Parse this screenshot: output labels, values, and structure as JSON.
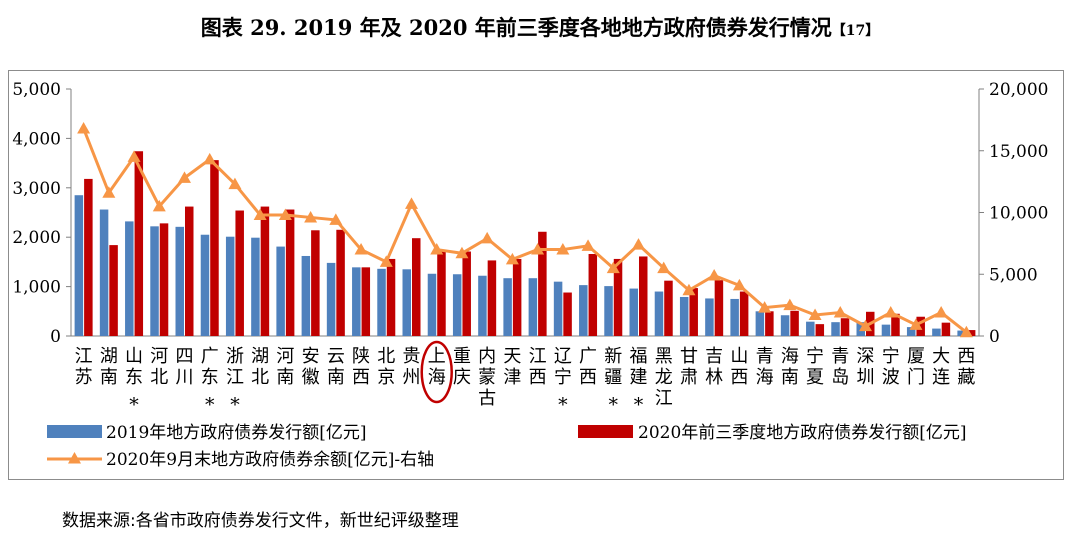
{
  "title": "图表 29. 2019 年及 2020 年前三季度各地地方政府债券发行情况",
  "title_ref": "【17】",
  "source": "数据来源:各省市政府债券发行文件，新世纪评级整理",
  "colors": {
    "bar2019": "#4f81bd",
    "bar2020": "#c00000",
    "line": "#f79646",
    "highlight": "#c00000"
  },
  "chart_data": {
    "type": "bar",
    "categories": [
      "江苏",
      "湖南",
      "山东*",
      "河北",
      "四川",
      "广东*",
      "浙江*",
      "湖北",
      "河南",
      "安徽",
      "云南",
      "陕西",
      "北京",
      "贵州",
      "上海",
      "重庆",
      "内蒙古",
      "天津",
      "江西",
      "辽宁*",
      "广西",
      "新疆*",
      "福建*",
      "黑龙江",
      "甘肃",
      "吉林",
      "山西",
      "青海",
      "海南",
      "宁夏",
      "青岛",
      "深圳",
      "宁波",
      "厦门",
      "大连",
      "西藏"
    ],
    "category_labels": [
      [
        "江",
        "苏"
      ],
      [
        "湖",
        "南"
      ],
      [
        "山",
        "东",
        "*"
      ],
      [
        "河",
        "北"
      ],
      [
        "四",
        "川"
      ],
      [
        "广",
        "东",
        "*"
      ],
      [
        "浙",
        "江",
        "*"
      ],
      [
        "湖",
        "北"
      ],
      [
        "河",
        "南"
      ],
      [
        "安",
        "徽"
      ],
      [
        "云",
        "南"
      ],
      [
        "陕",
        "西"
      ],
      [
        "北",
        "京"
      ],
      [
        "贵",
        "州"
      ],
      [
        "上",
        "海"
      ],
      [
        "重",
        "庆"
      ],
      [
        "内",
        "蒙",
        "古"
      ],
      [
        "天",
        "津"
      ],
      [
        "江",
        "西"
      ],
      [
        "辽",
        "宁",
        "*"
      ],
      [
        "广",
        "西"
      ],
      [
        "新",
        "疆",
        "*"
      ],
      [
        "福",
        "建",
        "*"
      ],
      [
        "黑",
        "龙",
        "江"
      ],
      [
        "甘",
        "肃"
      ],
      [
        "吉",
        "林"
      ],
      [
        "山",
        "西"
      ],
      [
        "青",
        "海"
      ],
      [
        "海",
        "南"
      ],
      [
        "宁",
        "夏"
      ],
      [
        "青",
        "岛"
      ],
      [
        "深",
        "圳"
      ],
      [
        "宁",
        "波"
      ],
      [
        "厦",
        "门"
      ],
      [
        "大",
        "连"
      ],
      [
        "西",
        "藏"
      ]
    ],
    "highlight_category": "上海",
    "series": [
      {
        "name": "2019年地方政府债券发行额[亿元]",
        "type": "bar",
        "axis": "left",
        "values": [
          2850,
          2560,
          2320,
          2220,
          2210,
          2050,
          2010,
          1990,
          1810,
          1620,
          1480,
          1390,
          1360,
          1350,
          1260,
          1250,
          1220,
          1170,
          1170,
          1100,
          1030,
          1010,
          960,
          900,
          790,
          760,
          750,
          500,
          420,
          290,
          280,
          280,
          230,
          180,
          150,
          110
        ]
      },
      {
        "name": "2020年前三季度地方政府债券发行额[亿元]",
        "type": "bar",
        "axis": "left",
        "values": [
          3180,
          1840,
          3740,
          2280,
          2620,
          3560,
          2540,
          2620,
          2560,
          2140,
          2150,
          1390,
          1560,
          1980,
          1710,
          1710,
          1530,
          1560,
          2110,
          880,
          1660,
          1560,
          1610,
          1120,
          970,
          1130,
          900,
          500,
          510,
          240,
          360,
          490,
          450,
          390,
          270,
          120
        ]
      },
      {
        "name": "2020年9月末地方政府债券余额[亿元]-右轴",
        "type": "line",
        "axis": "right",
        "values": [
          16800,
          11600,
          14500,
          10500,
          12800,
          14300,
          12300,
          9800,
          9800,
          9600,
          9400,
          7000,
          6000,
          10700,
          7000,
          6700,
          7900,
          6200,
          7000,
          7000,
          7300,
          5500,
          7400,
          5500,
          3700,
          4900,
          4100,
          2300,
          2500,
          1700,
          1900,
          800,
          1900,
          900,
          1900,
          300
        ]
      }
    ],
    "y_left": {
      "min": 0,
      "max": 5000,
      "ticks": [
        "0",
        "1,000",
        "2,000",
        "3,000",
        "4,000",
        "5,000"
      ]
    },
    "y_right": {
      "min": 0,
      "max": 20000,
      "ticks": [
        "0",
        "5,000",
        "10,000",
        "15,000",
        "20,000"
      ]
    },
    "legend": [
      "2019年地方政府债券发行额[亿元]",
      "2020年前三季度地方政府债券发行额[亿元]",
      "2020年9月末地方政府债券余额[亿元]-右轴"
    ],
    "grid": false,
    "legend_position": "bottom"
  }
}
